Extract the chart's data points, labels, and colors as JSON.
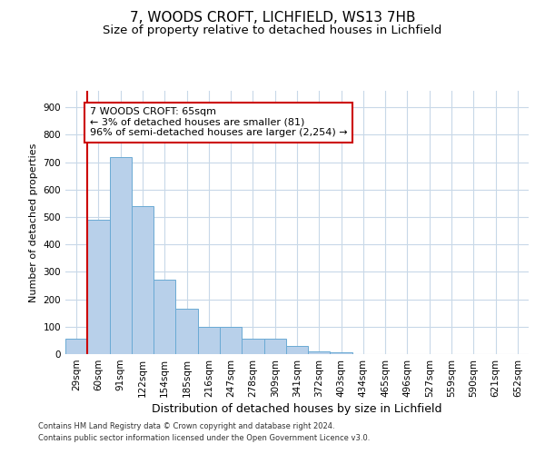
{
  "title1": "7, WOODS CROFT, LICHFIELD, WS13 7HB",
  "title2": "Size of property relative to detached houses in Lichfield",
  "xlabel": "Distribution of detached houses by size in Lichfield",
  "ylabel": "Number of detached properties",
  "categories": [
    "29sqm",
    "60sqm",
    "91sqm",
    "122sqm",
    "154sqm",
    "185sqm",
    "216sqm",
    "247sqm",
    "278sqm",
    "309sqm",
    "341sqm",
    "372sqm",
    "403sqm",
    "434sqm",
    "465sqm",
    "496sqm",
    "527sqm",
    "559sqm",
    "590sqm",
    "621sqm",
    "652sqm"
  ],
  "values": [
    55,
    490,
    720,
    540,
    270,
    165,
    100,
    100,
    55,
    55,
    30,
    10,
    5,
    0,
    0,
    0,
    0,
    0,
    0,
    0,
    0
  ],
  "bar_color": "#b8d0ea",
  "bar_edge_color": "#6aaad4",
  "highlight_line_color": "#cc0000",
  "annotation_text": "7 WOODS CROFT: 65sqm\n← 3% of detached houses are smaller (81)\n96% of semi-detached houses are larger (2,254) →",
  "annotation_box_color": "#ffffff",
  "annotation_box_edge_color": "#cc0000",
  "ylim": [
    0,
    960
  ],
  "yticks": [
    0,
    100,
    200,
    300,
    400,
    500,
    600,
    700,
    800,
    900
  ],
  "footer1": "Contains HM Land Registry data © Crown copyright and database right 2024.",
  "footer2": "Contains public sector information licensed under the Open Government Licence v3.0.",
  "bg_color": "#ffffff",
  "grid_color": "#c8d8e8",
  "title1_fontsize": 11,
  "title2_fontsize": 9.5,
  "xlabel_fontsize": 9,
  "ylabel_fontsize": 8,
  "tick_fontsize": 7.5,
  "annotation_fontsize": 8,
  "footer_fontsize": 6
}
